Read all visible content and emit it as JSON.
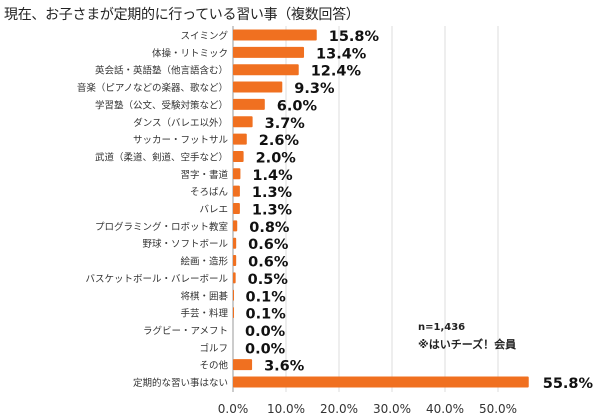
{
  "chart_data": {
    "type": "bar",
    "orientation": "horizontal",
    "title": "現在、お子さまが定期的に行っている習い事（複数回答）",
    "categories": [
      "スイミング",
      "体操・リトミック",
      "英会話・英語塾（他言語含む）",
      "音楽（ピアノなどの楽器、歌など）",
      "学習塾（公文、受験対策など）",
      "ダンス（バレエ以外）",
      "サッカー・フットサル",
      "武道（柔道、剣道、空手など）",
      "習字・書道",
      "そろばん",
      "バレエ",
      "プログラミング・ロボット教室",
      "野球・ソフトボール",
      "絵画・造形",
      "バスケットボール・バレーボール",
      "将棋・囲碁",
      "手芸・料理",
      "ラグビー・アメフト",
      "ゴルフ",
      "その他",
      "定期的な習い事はない"
    ],
    "values": [
      15.8,
      13.4,
      12.4,
      9.3,
      6.0,
      3.7,
      2.6,
      2.0,
      1.4,
      1.3,
      1.3,
      0.8,
      0.6,
      0.6,
      0.5,
      0.1,
      0.1,
      0.0,
      0.0,
      3.6,
      55.8
    ],
    "value_labels": [
      "15.8%",
      "13.4%",
      "12.4%",
      "9.3%",
      "6.0%",
      "3.7%",
      "2.6%",
      "2.0%",
      "1.4%",
      "1.3%",
      "1.3%",
      "0.8%",
      "0.6%",
      "0.6%",
      "0.5%",
      "0.1%",
      "0.1%",
      "0.0%",
      "0.0%",
      "3.6%",
      "55.8%"
    ],
    "xticks": [
      "0.0%",
      "10.0%",
      "20.0%",
      "30.0%",
      "40.0%",
      "50.0%"
    ],
    "xtick_values": [
      0,
      10,
      20,
      30,
      40,
      50
    ],
    "xlim": [
      0,
      57
    ],
    "grid": true,
    "bar_color": "#f07020",
    "annotations": [
      "n=1,436",
      "※はいチーズ！会員"
    ]
  }
}
